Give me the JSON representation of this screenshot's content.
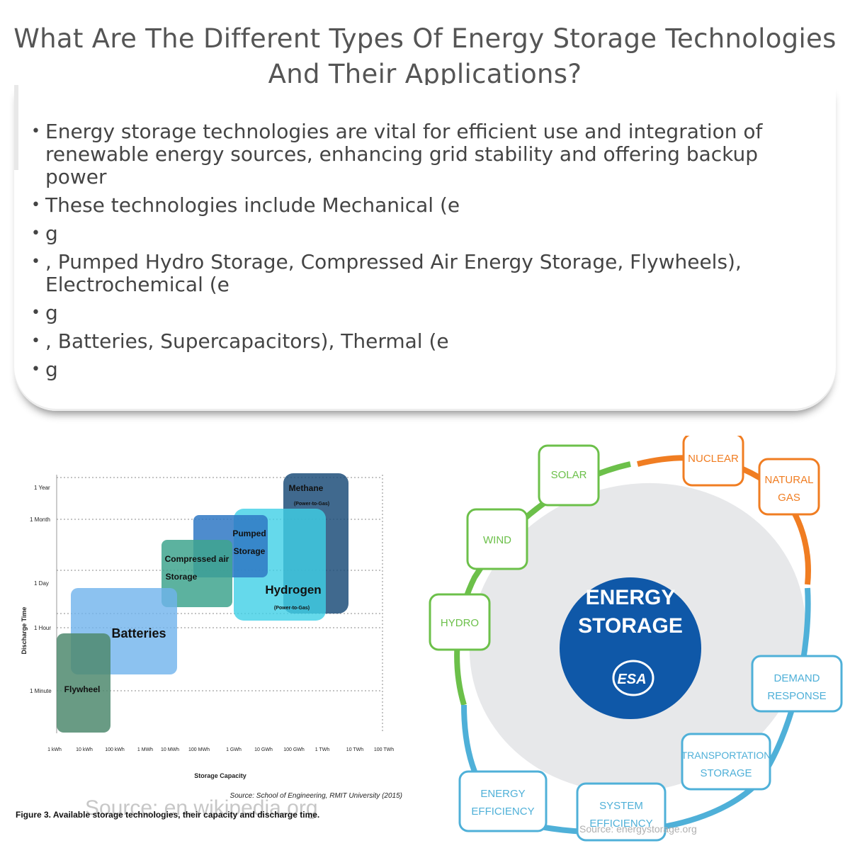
{
  "title": "What Are The Different Types Of Energy Storage Technologies And Their Applications?",
  "bullets": [
    "Energy storage technologies are vital for efficient use and integration of renewable energy sources, enhancing grid stability and offering backup power",
    "These technologies include Mechanical (e",
    "g",
    ", Pumped Hydro Storage, Compressed Air Energy Storage, Flywheels), Electrochemical (e",
    "g",
    ", Batteries, Supercapacitors), Thermal (e",
    "g"
  ],
  "left_figure": {
    "ylabel": "Discharge Time",
    "xlabel": "Storage Capacity",
    "y_ticks": [
      "1 Year",
      "1 Month",
      "1 Day",
      "1 Hour",
      "1 Minute"
    ],
    "x_ticks": [
      "1 kWh",
      "10 kWh",
      "100 kWh",
      "1 MWh",
      "10 MWh",
      "100 MWh",
      "1 GWh",
      "10 GWh",
      "100 GWh",
      "1 TWh",
      "10 TWh",
      "100 TWh"
    ],
    "technologies": [
      {
        "name": "Flywheel",
        "sub": "",
        "color": "#4f8a6e"
      },
      {
        "name": "Batteries",
        "sub": "",
        "color": "#6fb3ec"
      },
      {
        "name": "Compressed air Storage",
        "sub": "",
        "color": "#3fa48e"
      },
      {
        "name": "Pumped Storage",
        "sub": "",
        "color": "#2f78c4"
      },
      {
        "name": "Methane",
        "sub": "(Power-to-Gas)",
        "color": "#1f4f7a"
      },
      {
        "name": "Hydrogen",
        "sub": "(Power-to-Gas)",
        "color": "#3ed0e6"
      }
    ],
    "source": "Source: School of Engineering, RMIT University (2015)",
    "caption": "Figure 3. Available storage technologies, their capacity and discharge time.",
    "watermark": "Source: en.wikipedia.org"
  },
  "right_figure": {
    "center_line1": "ENERGY",
    "center_line2": "STORAGE",
    "logo": "ESA",
    "nodes": [
      {
        "label1": "SOLAR",
        "label2": "",
        "color": "#6cc04a"
      },
      {
        "label1": "WIND",
        "label2": "",
        "color": "#6cc04a"
      },
      {
        "label1": "HYDRO",
        "label2": "",
        "color": "#6cc04a"
      },
      {
        "label1": "NUCLEAR",
        "label2": "",
        "color": "#f07d22"
      },
      {
        "label1": "NATURAL",
        "label2": "GAS",
        "color": "#f07d22"
      },
      {
        "label1": "DEMAND",
        "label2": "RESPONSE",
        "color": "#4fb0d8"
      },
      {
        "label1": "TRANSPORTATION",
        "label2": "STORAGE",
        "color": "#4fb0d8"
      },
      {
        "label1": "SYSTEM",
        "label2": "EFFICIENCY",
        "color": "#4fb0d8"
      },
      {
        "label1": "ENERGY",
        "label2": "EFFICIENCY",
        "color": "#4fb0d8"
      }
    ],
    "watermark": "Source: energystorage.org"
  }
}
